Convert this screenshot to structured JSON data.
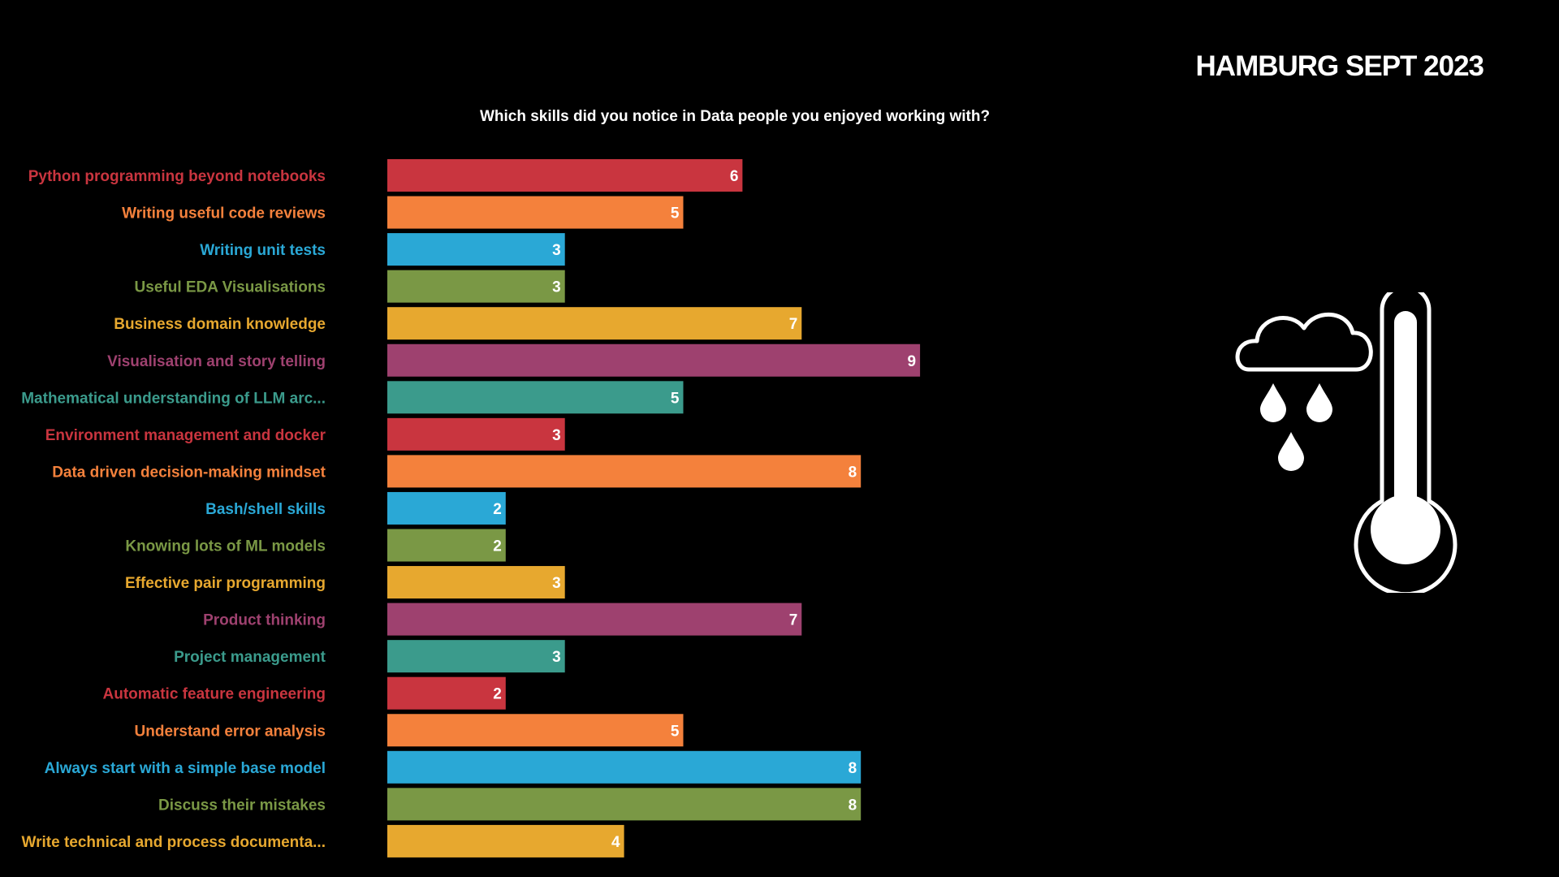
{
  "header": {
    "event_title": "HAMBURG SEPT 2023"
  },
  "icons": {
    "weather": "rain-cloud-thermometer-icon"
  },
  "chart_data": {
    "type": "bar",
    "orientation": "horizontal",
    "title": "Which skills did you notice in Data people you enjoyed working with?",
    "xlabel": "",
    "ylabel": "",
    "xlim": [
      0,
      9
    ],
    "grid": false,
    "legend": "none",
    "data_labels": "inside-end",
    "categories": [
      "Python programming beyond notebooks",
      "Writing useful code reviews",
      "Writing unit tests",
      "Useful EDA Visualisations",
      "Business domain knowledge",
      "Visualisation and story telling",
      "Mathematical understanding of LLM arc...",
      "Environment management and docker",
      "Data driven decision-making mindset",
      "Bash/shell skills",
      "Knowing lots of ML models",
      "Effective pair programming",
      "Product thinking",
      "Project management",
      "Automatic feature engineering",
      "Understand error analysis",
      "Always start with a simple base model",
      "Discuss their mistakes",
      "Write technical and process documenta..."
    ],
    "values": [
      6,
      5,
      3,
      3,
      7,
      9,
      5,
      3,
      8,
      2,
      2,
      3,
      7,
      3,
      2,
      5,
      8,
      8,
      4
    ],
    "colors": [
      "#c9353f",
      "#f4813c",
      "#2aa8d6",
      "#7a9845",
      "#e7a82f",
      "#9e416f",
      "#3b9b8c",
      "#c9353f",
      "#f4813c",
      "#2aa8d6",
      "#7a9845",
      "#e7a82f",
      "#9e416f",
      "#3b9b8c",
      "#c9353f",
      "#f4813c",
      "#2aa8d6",
      "#7a9845",
      "#e7a82f"
    ]
  }
}
